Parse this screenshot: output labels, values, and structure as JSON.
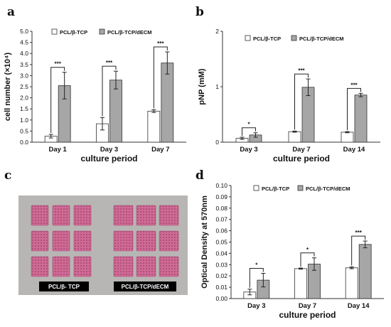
{
  "colors": {
    "series1_fill": "#ffffff",
    "series2_fill": "#a6a6a6",
    "photo_bg": "#b8b6b4",
    "scaffold": "#c45a86",
    "label_bg": "#000000"
  },
  "chart_data": [
    {
      "panel": "a",
      "type": "bar",
      "xlabel": "culture period",
      "ylabel": "cell number (×10⁴)",
      "categories": [
        "Day 1",
        "Day 3",
        "Day 7"
      ],
      "ylim": [
        0,
        5.0
      ],
      "yticks": [
        0,
        0.5,
        1.0,
        1.5,
        2.0,
        2.5,
        3.0,
        3.5,
        4.0,
        4.5,
        5.0
      ],
      "tick_decimals": 1,
      "legend_position": "top",
      "series": [
        {
          "name": "PCL/β-TCP",
          "values": [
            0.27,
            0.83,
            1.4
          ],
          "errors": [
            0.08,
            0.28,
            0.06
          ]
        },
        {
          "name": "PCL/β-TCP/dECM",
          "values": [
            2.55,
            2.8,
            3.57
          ],
          "errors": [
            0.6,
            0.4,
            0.5
          ]
        }
      ],
      "significance": [
        "***",
        "***",
        "***"
      ]
    },
    {
      "panel": "b",
      "type": "bar",
      "xlabel": "culture period",
      "ylabel": "pNP (mM)",
      "categories": [
        "Day 3",
        "Day 7",
        "Day 14"
      ],
      "ylim": [
        0,
        2
      ],
      "yticks": [
        0,
        1,
        2
      ],
      "tick_decimals": 0,
      "legend_position": "top",
      "series": [
        {
          "name": "PCL/β-TCP",
          "values": [
            0.07,
            0.19,
            0.18
          ],
          "errors": [
            0.02,
            0.01,
            0.01
          ]
        },
        {
          "name": "PCL/β-TCP/dECM",
          "values": [
            0.13,
            0.99,
            0.85
          ],
          "errors": [
            0.04,
            0.15,
            0.03
          ]
        }
      ],
      "significance": [
        "*",
        "***",
        "***"
      ]
    },
    {
      "panel": "d",
      "type": "bar",
      "xlabel": "culture period",
      "ylabel": "Optical Density at 570nm",
      "categories": [
        "Day 3",
        "Day 7",
        "Day 14"
      ],
      "ylim": [
        0,
        0.1
      ],
      "yticks": [
        0,
        0.01,
        0.02,
        0.03,
        0.04,
        0.05,
        0.06,
        0.07,
        0.08,
        0.09,
        0.1
      ],
      "tick_decimals": 2,
      "legend_position": "top",
      "series": [
        {
          "name": "PCL/β-TCP",
          "values": [
            0.0058,
            0.0265,
            0.0272
          ],
          "errors": [
            0.0025,
            0.0005,
            0.0008
          ]
        },
        {
          "name": "PCL/β-TCP/dECM",
          "values": [
            0.0163,
            0.0305,
            0.0479
          ],
          "errors": [
            0.006,
            0.0055,
            0.003
          ]
        }
      ],
      "significance": [
        "*",
        "*",
        "***"
      ]
    }
  ],
  "photo": {
    "panel": "c",
    "labels": [
      "PCL/β- TCP",
      "PCL/β-TCP/dECM"
    ]
  }
}
